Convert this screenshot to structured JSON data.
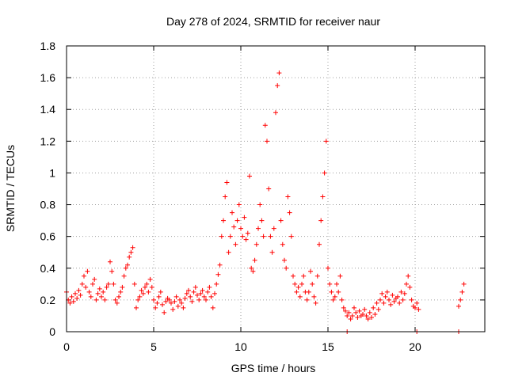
{
  "chart_data": {
    "type": "scatter",
    "title": "Day 278 of 2024, SRMTID for receiver naur",
    "xlabel": "GPS time / hours",
    "ylabel": "SRMTID / TECUs",
    "xlim": [
      0,
      24
    ],
    "ylim": [
      0,
      1.8
    ],
    "x_ticks": [
      0,
      5,
      10,
      15,
      20
    ],
    "y_ticks": [
      0,
      0.2,
      0.4,
      0.6,
      0.8,
      1,
      1.2,
      1.4,
      1.6,
      1.8
    ],
    "x_tick_labels": [
      "0",
      "5",
      "10",
      "15",
      "20"
    ],
    "y_tick_labels": [
      "0",
      "0.2",
      "0.4",
      "0.6",
      "0.8",
      "1",
      "1.2",
      "1.4",
      "1.6",
      "1.8"
    ],
    "grid": true,
    "marker": "+",
    "series_color": "#ff0000",
    "series": [
      {
        "name": "SRMTID",
        "points": [
          [
            0.0,
            0.25
          ],
          [
            0.1,
            0.2
          ],
          [
            0.2,
            0.18
          ],
          [
            0.3,
            0.22
          ],
          [
            0.4,
            0.19
          ],
          [
            0.5,
            0.24
          ],
          [
            0.6,
            0.21
          ],
          [
            0.7,
            0.26
          ],
          [
            0.8,
            0.23
          ],
          [
            0.9,
            0.3
          ],
          [
            1.0,
            0.35
          ],
          [
            1.1,
            0.28
          ],
          [
            1.2,
            0.38
          ],
          [
            1.3,
            0.25
          ],
          [
            1.4,
            0.22
          ],
          [
            1.5,
            0.3
          ],
          [
            1.6,
            0.33
          ],
          [
            1.7,
            0.2
          ],
          [
            1.8,
            0.24
          ],
          [
            1.9,
            0.27
          ],
          [
            2.0,
            0.22
          ],
          [
            2.1,
            0.25
          ],
          [
            2.2,
            0.2
          ],
          [
            2.3,
            0.28
          ],
          [
            2.4,
            0.3
          ],
          [
            2.5,
            0.44
          ],
          [
            2.6,
            0.38
          ],
          [
            2.7,
            0.3
          ],
          [
            2.8,
            0.2
          ],
          [
            2.9,
            0.18
          ],
          [
            3.0,
            0.22
          ],
          [
            3.1,
            0.25
          ],
          [
            3.2,
            0.28
          ],
          [
            3.3,
            0.35
          ],
          [
            3.4,
            0.4
          ],
          [
            3.5,
            0.42
          ],
          [
            3.6,
            0.47
          ],
          [
            3.7,
            0.5
          ],
          [
            3.8,
            0.53
          ],
          [
            3.9,
            0.3
          ],
          [
            4.0,
            0.15
          ],
          [
            4.1,
            0.2
          ],
          [
            4.2,
            0.22
          ],
          [
            4.3,
            0.26
          ],
          [
            4.4,
            0.24
          ],
          [
            4.5,
            0.28
          ],
          [
            4.6,
            0.3
          ],
          [
            4.7,
            0.25
          ],
          [
            4.8,
            0.33
          ],
          [
            4.9,
            0.28
          ],
          [
            5.0,
            0.2
          ],
          [
            5.1,
            0.15
          ],
          [
            5.2,
            0.18
          ],
          [
            5.3,
            0.22
          ],
          [
            5.4,
            0.25
          ],
          [
            5.5,
            0.17
          ],
          [
            5.6,
            0.12
          ],
          [
            5.7,
            0.19
          ],
          [
            5.8,
            0.21
          ],
          [
            5.9,
            0.2
          ],
          [
            6.0,
            0.18
          ],
          [
            6.1,
            0.14
          ],
          [
            6.2,
            0.19
          ],
          [
            6.3,
            0.22
          ],
          [
            6.4,
            0.16
          ],
          [
            6.5,
            0.2
          ],
          [
            6.6,
            0.18
          ],
          [
            6.7,
            0.15
          ],
          [
            6.8,
            0.21
          ],
          [
            6.9,
            0.24
          ],
          [
            7.0,
            0.26
          ],
          [
            7.1,
            0.22
          ],
          [
            7.2,
            0.19
          ],
          [
            7.3,
            0.25
          ],
          [
            7.4,
            0.28
          ],
          [
            7.5,
            0.23
          ],
          [
            7.6,
            0.2
          ],
          [
            7.7,
            0.24
          ],
          [
            7.8,
            0.26
          ],
          [
            7.9,
            0.22
          ],
          [
            8.0,
            0.2
          ],
          [
            8.1,
            0.25
          ],
          [
            8.2,
            0.28
          ],
          [
            8.3,
            0.22
          ],
          [
            8.4,
            0.15
          ],
          [
            8.5,
            0.24
          ],
          [
            8.6,
            0.3
          ],
          [
            8.7,
            0.36
          ],
          [
            8.8,
            0.42
          ],
          [
            8.9,
            0.6
          ],
          [
            9.0,
            0.7
          ],
          [
            9.1,
            0.85
          ],
          [
            9.2,
            0.94
          ],
          [
            9.3,
            0.5
          ],
          [
            9.4,
            0.6
          ],
          [
            9.5,
            0.75
          ],
          [
            9.6,
            0.66
          ],
          [
            9.7,
            0.55
          ],
          [
            9.8,
            0.7
          ],
          [
            9.9,
            0.8
          ],
          [
            10.0,
            0.65
          ],
          [
            10.1,
            0.6
          ],
          [
            10.2,
            0.72
          ],
          [
            10.3,
            0.58
          ],
          [
            10.4,
            0.62
          ],
          [
            10.5,
            0.98
          ],
          [
            10.6,
            0.4
          ],
          [
            10.7,
            0.38
          ],
          [
            10.8,
            0.45
          ],
          [
            10.9,
            0.55
          ],
          [
            11.0,
            0.65
          ],
          [
            11.1,
            0.8
          ],
          [
            11.2,
            0.7
          ],
          [
            11.3,
            0.6
          ],
          [
            11.4,
            1.3
          ],
          [
            11.5,
            1.2
          ],
          [
            11.6,
            0.9
          ],
          [
            11.7,
            0.6
          ],
          [
            11.8,
            0.5
          ],
          [
            11.9,
            0.65
          ],
          [
            12.0,
            1.38
          ],
          [
            12.1,
            1.55
          ],
          [
            12.2,
            1.63
          ],
          [
            12.3,
            0.7
          ],
          [
            12.4,
            0.55
          ],
          [
            12.5,
            0.45
          ],
          [
            12.6,
            0.4
          ],
          [
            12.7,
            0.85
          ],
          [
            12.8,
            0.75
          ],
          [
            12.9,
            0.6
          ],
          [
            13.0,
            0.35
          ],
          [
            13.1,
            0.3
          ],
          [
            13.2,
            0.25
          ],
          [
            13.3,
            0.28
          ],
          [
            13.4,
            0.22
          ],
          [
            13.5,
            0.3
          ],
          [
            13.6,
            0.35
          ],
          [
            13.7,
            0.25
          ],
          [
            13.8,
            0.2
          ],
          [
            13.9,
            0.25
          ],
          [
            14.0,
            0.38
          ],
          [
            14.1,
            0.3
          ],
          [
            14.2,
            0.22
          ],
          [
            14.3,
            0.18
          ],
          [
            14.4,
            0.35
          ],
          [
            14.5,
            0.55
          ],
          [
            14.6,
            0.7
          ],
          [
            14.7,
            0.85
          ],
          [
            14.8,
            1.0
          ],
          [
            14.9,
            1.2
          ],
          [
            15.0,
            0.4
          ],
          [
            15.1,
            0.3
          ],
          [
            15.2,
            0.25
          ],
          [
            15.3,
            0.2
          ],
          [
            15.4,
            0.22
          ],
          [
            15.5,
            0.3
          ],
          [
            15.6,
            0.25
          ],
          [
            15.7,
            0.35
          ],
          [
            15.8,
            0.2
          ],
          [
            15.9,
            0.15
          ],
          [
            16.0,
            0.13
          ],
          [
            16.1,
            0.1
          ],
          [
            16.2,
            0.12
          ],
          [
            16.3,
            0.08
          ],
          [
            16.4,
            0.1
          ],
          [
            16.5,
            0.15
          ],
          [
            16.6,
            0.12
          ],
          [
            16.7,
            0.09
          ],
          [
            16.8,
            0.13
          ],
          [
            16.9,
            0.1
          ],
          [
            17.0,
            0.11
          ],
          [
            17.1,
            0.14
          ],
          [
            17.2,
            0.1
          ],
          [
            17.3,
            0.08
          ],
          [
            17.4,
            0.12
          ],
          [
            17.5,
            0.09
          ],
          [
            17.6,
            0.15
          ],
          [
            17.7,
            0.11
          ],
          [
            17.8,
            0.18
          ],
          [
            17.9,
            0.14
          ],
          [
            18.0,
            0.2
          ],
          [
            18.1,
            0.24
          ],
          [
            18.2,
            0.18
          ],
          [
            18.3,
            0.22
          ],
          [
            18.4,
            0.25
          ],
          [
            18.5,
            0.2
          ],
          [
            18.6,
            0.17
          ],
          [
            18.7,
            0.23
          ],
          [
            18.8,
            0.19
          ],
          [
            18.9,
            0.21
          ],
          [
            19.0,
            0.22
          ],
          [
            19.1,
            0.18
          ],
          [
            19.2,
            0.25
          ],
          [
            19.3,
            0.2
          ],
          [
            19.4,
            0.24
          ],
          [
            19.5,
            0.3
          ],
          [
            19.6,
            0.35
          ],
          [
            19.7,
            0.28
          ],
          [
            19.8,
            0.2
          ],
          [
            19.9,
            0.16
          ],
          [
            20.0,
            0.15
          ],
          [
            20.1,
            0.18
          ],
          [
            20.2,
            0.14
          ],
          [
            22.5,
            0.16
          ],
          [
            22.6,
            0.2
          ],
          [
            22.7,
            0.25
          ],
          [
            22.8,
            0.3
          ],
          [
            16.1,
            0.0
          ],
          [
            20.1,
            0.0
          ],
          [
            22.5,
            0.0
          ]
        ]
      }
    ]
  }
}
